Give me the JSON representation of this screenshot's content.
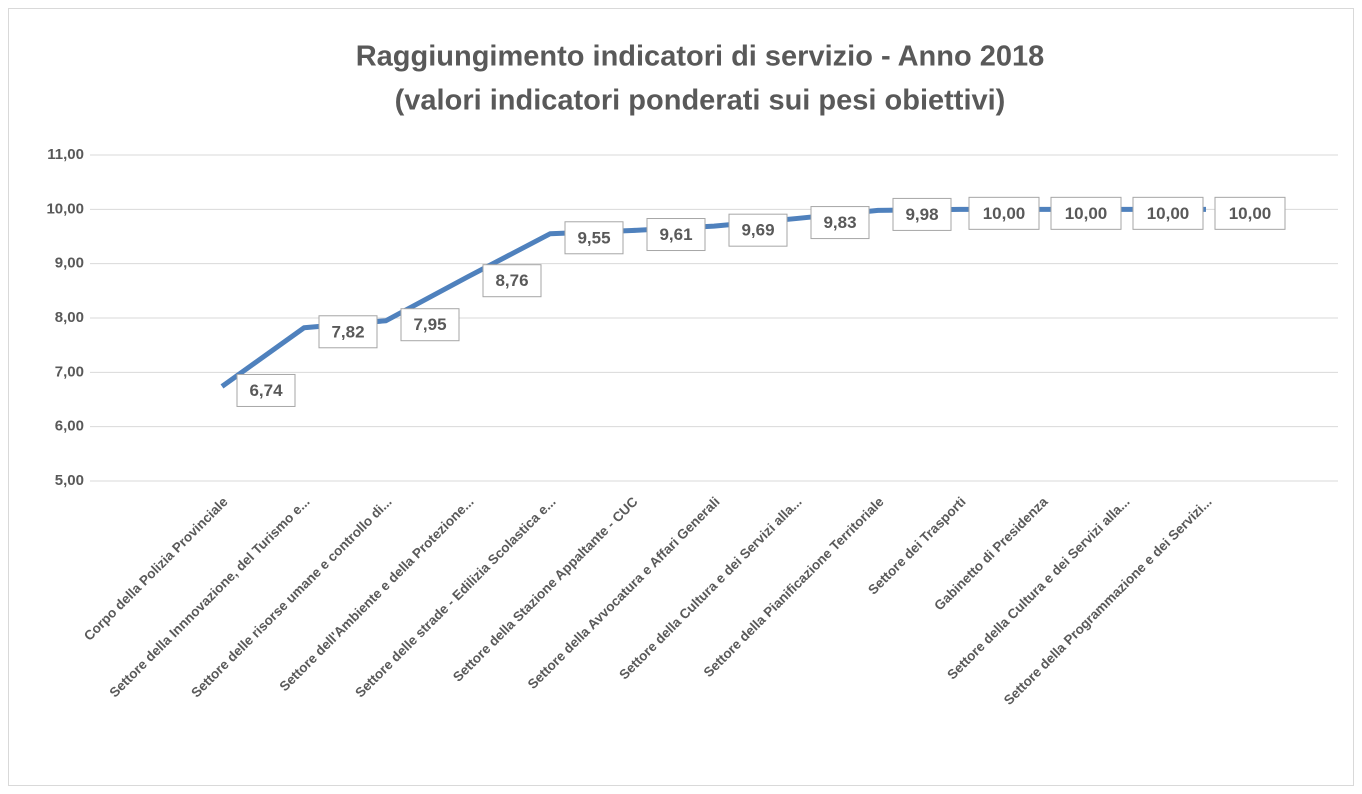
{
  "chart_data": {
    "type": "line",
    "title": "Raggiungimento indicatori di servizio - Anno 2018",
    "subtitle": "(valori indicatori ponderati sui pesi obiettivi)",
    "categories": [
      "Corpo della Polizia Provinciale",
      "Settore della Innnovazione, del Turismo e...",
      "Settore delle risorse umane e controllo di...",
      "Settore dell'Ambiente e della Protezione...",
      "Settore delle strade - Edilizia Scolastica e...",
      "Settore della Stazione Appaltante - CUC",
      "Settore della Avvocatura e Affari Generali",
      "Settore della Cultura e dei Servizi alla...",
      "Settore della Pianificazione Territoriale",
      "Settore dei Trasporti",
      "Gabinetto di Presidenza",
      "Settore della Cultura e dei Servizi alla...",
      "Settore della Programmazione e dei Servizi..."
    ],
    "series": [
      {
        "color": "#4f81bd",
        "values": [
          6.74,
          7.82,
          7.95,
          8.76,
          9.55,
          9.61,
          9.69,
          9.83,
          9.98,
          10,
          10,
          10,
          10
        ],
        "value_labels": [
          "6,74",
          "7,82",
          "7,95",
          "8,76",
          "9,55",
          "9,61",
          "9,69",
          "9,83",
          "9,98",
          "10,00",
          "10,00",
          "10,00",
          "10,00"
        ]
      }
    ],
    "ylim": [
      5,
      11
    ],
    "yticks": [
      {
        "value": 5,
        "label": "5,00"
      },
      {
        "value": 6,
        "label": "6,00"
      },
      {
        "value": 7,
        "label": "7,00"
      },
      {
        "value": 8,
        "label": "8,00"
      },
      {
        "value": 9,
        "label": "9,00"
      },
      {
        "value": 10,
        "label": "10,00"
      },
      {
        "value": 11,
        "label": "11,00"
      }
    ],
    "grid": true
  }
}
